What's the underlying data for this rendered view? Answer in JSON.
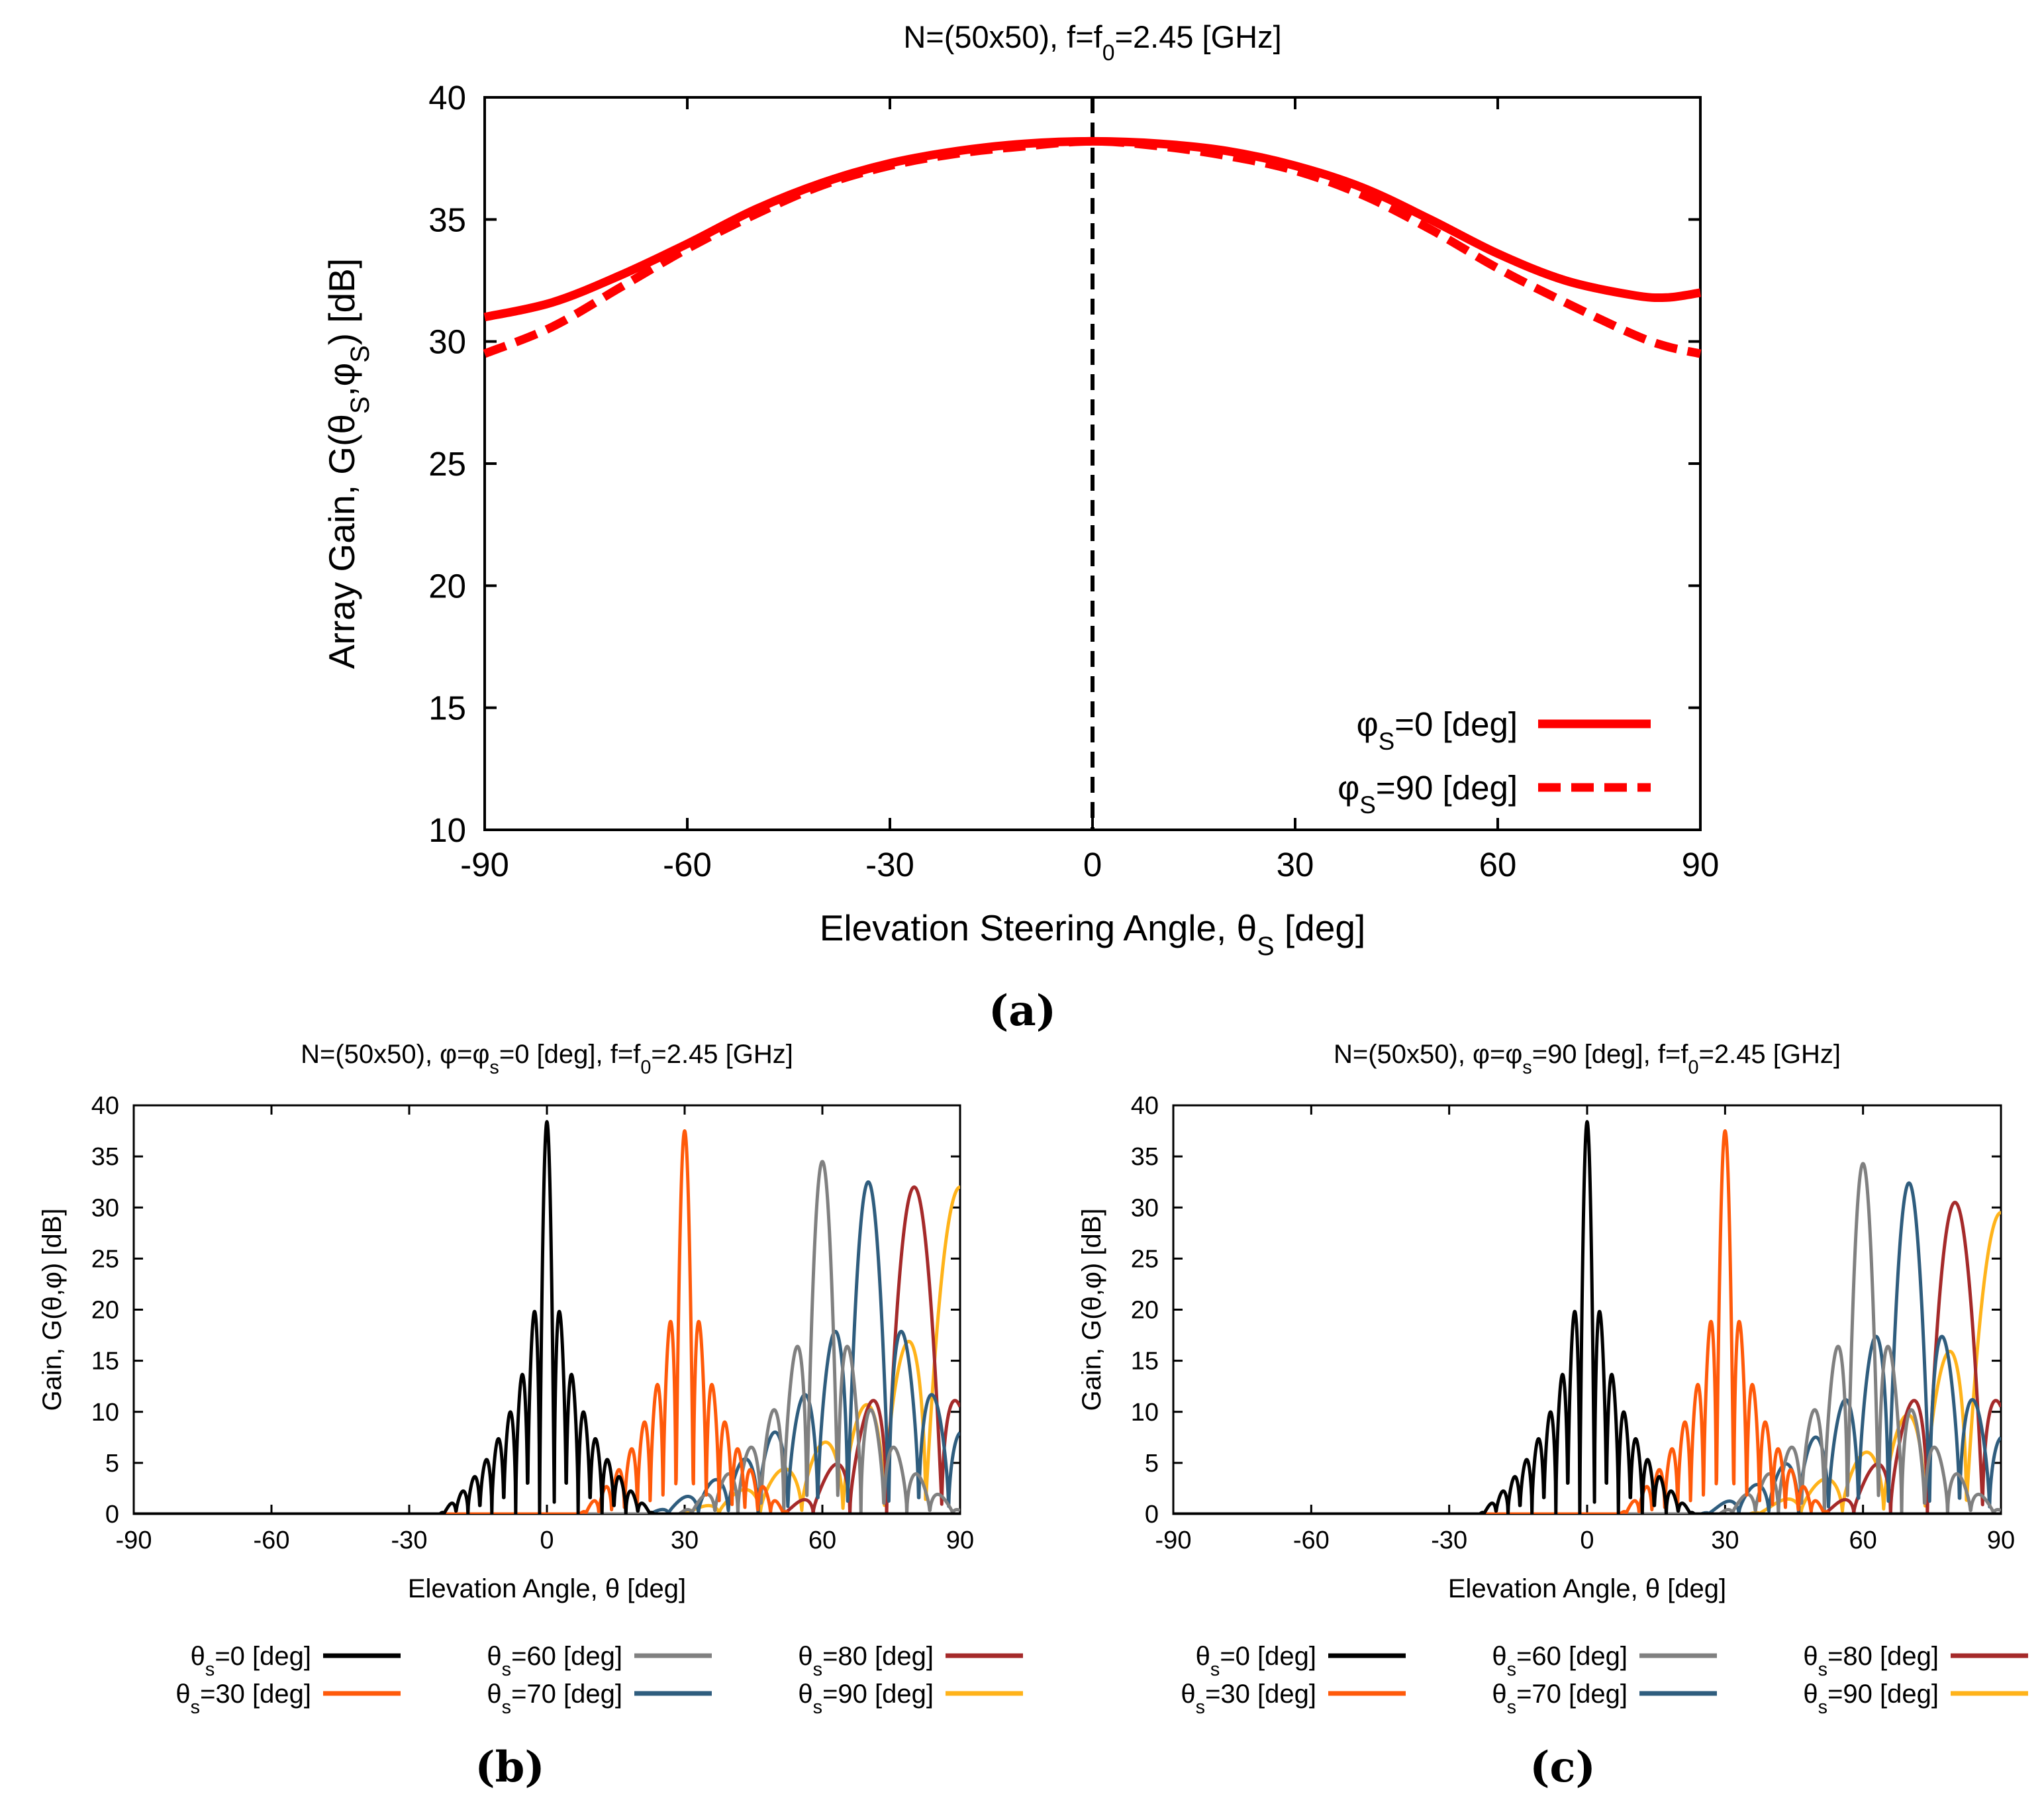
{
  "chart_data": [
    {
      "id": "a",
      "type": "line",
      "panel_label": "(a)",
      "title": {
        "pre": "N=(50x50),  f=f",
        "sub": "0",
        "post": "=2.45 [GHz]"
      },
      "xlabel": {
        "pre": "Elevation Steering Angle, θ",
        "sub": "S",
        "post": " [deg]"
      },
      "ylabel": {
        "pre": "Array Gain, G(θ",
        "sub1": "S",
        "mid": ",φ",
        "sub2": "S",
        "post": ") [dB]"
      },
      "xlim": [
        -90,
        90
      ],
      "ylim": [
        10,
        40
      ],
      "xticks": [
        -90,
        -60,
        -30,
        0,
        30,
        60,
        90
      ],
      "yticks": [
        10,
        15,
        20,
        25,
        30,
        35,
        40
      ],
      "grid": false,
      "legend_position": "bottom-right",
      "vline": {
        "x": 0,
        "style": "dashed",
        "color": "#000000"
      },
      "x": [
        -90,
        -80,
        -70,
        -60,
        -50,
        -40,
        -30,
        -20,
        -10,
        0,
        10,
        20,
        30,
        40,
        50,
        60,
        70,
        80,
        85,
        90
      ],
      "series": [
        {
          "name": "φs=0 [deg]",
          "label": {
            "pre": "φ",
            "sub": "S",
            "post": "=0 [deg]"
          },
          "color": "#ff0000",
          "style": "solid",
          "values": [
            31.0,
            31.6,
            32.7,
            34.0,
            35.4,
            36.5,
            37.3,
            37.8,
            38.1,
            38.2,
            38.1,
            37.8,
            37.2,
            36.3,
            35.0,
            33.6,
            32.5,
            31.9,
            31.8,
            32.0
          ]
        },
        {
          "name": "φs=90 [deg]",
          "label": {
            "pre": "φ",
            "sub": "S",
            "post": "=90 [deg]"
          },
          "color": "#ff0000",
          "style": "dashed",
          "values": [
            29.5,
            30.6,
            32.2,
            33.8,
            35.2,
            36.4,
            37.2,
            37.7,
            38.0,
            38.2,
            38.0,
            37.6,
            37.0,
            36.0,
            34.6,
            33.0,
            31.6,
            30.3,
            29.8,
            29.5
          ]
        }
      ]
    },
    {
      "id": "b",
      "type": "line",
      "panel_label": "(b)",
      "title": {
        "pre": "N=(50x50), φ=φ",
        "sub": "s",
        "mid": "=0 [deg],  f=f",
        "sub2": "0",
        "post": "=2.45 [GHz]"
      },
      "xlabel": "Elevation Angle, θ [deg]",
      "ylabel": "Gain, G(θ,φ) [dB]",
      "xlim": [
        -90,
        90
      ],
      "ylim": [
        0,
        40
      ],
      "xticks": [
        -90,
        -60,
        -30,
        0,
        30,
        60,
        90
      ],
      "yticks": [
        0,
        5,
        10,
        15,
        20,
        25,
        30,
        35,
        40
      ],
      "grid": false,
      "legend_position": "below",
      "series": [
        {
          "name": "θs=0 [deg]",
          "label": {
            "pre": "θ",
            "sub": "s",
            "post": "=0 [deg]"
          },
          "color": "#000000",
          "steer": 0,
          "peak": 38.4,
          "width": 1.6,
          "sidelobe": 25.0,
          "lobe_spacing": 2.6
        },
        {
          "name": "θs=30 [deg]",
          "label": {
            "pre": "θ",
            "sub": "s",
            "post": "=30 [deg]"
          },
          "color": "#ff5a0a",
          "steer": 30,
          "peak": 37.5,
          "width": 1.9,
          "sidelobe": 24.0,
          "lobe_spacing": 2.8
        },
        {
          "name": "θs=60 [deg]",
          "label": {
            "pre": "θ",
            "sub": "s",
            "post": "=60 [deg]"
          },
          "color": "#808080",
          "steer": 60,
          "peak": 34.5,
          "width": 3.4,
          "sidelobe": 21.5,
          "lobe_spacing": 5.0
        },
        {
          "name": "θs=70 [deg]",
          "label": {
            "pre": "θ",
            "sub": "s",
            "post": "=70 [deg]"
          },
          "color": "#2f5d7e",
          "steer": 70,
          "peak": 32.5,
          "width": 4.5,
          "sidelobe": 23.0,
          "lobe_spacing": 6.5
        },
        {
          "name": "θs=80 [deg]",
          "label": {
            "pre": "θ",
            "sub": "s",
            "post": "=80 [deg]"
          },
          "color": "#a52a2a",
          "steer": 80,
          "peak": 32.0,
          "width": 6.0,
          "sidelobe": 16.0,
          "lobe_spacing": 8.0
        },
        {
          "name": "θs=90 [deg]",
          "label": {
            "pre": "θ",
            "sub": "s",
            "post": "=90 [deg]"
          },
          "color": "#ffb31a",
          "steer": 90,
          "peak": 32.0,
          "width": 7.5,
          "sidelobe": 22.0,
          "lobe_spacing": 9.0
        }
      ]
    },
    {
      "id": "c",
      "type": "line",
      "panel_label": "(c)",
      "title": {
        "pre": "N=(50x50), φ=φ",
        "sub": "s",
        "mid": "=90 [deg],  f=f",
        "sub2": "0",
        "post": "=2.45 [GHz]"
      },
      "xlabel": "Elevation Angle, θ [deg]",
      "ylabel": "Gain, G(θ,φ) [dB]",
      "xlim": [
        -90,
        90
      ],
      "ylim": [
        0,
        40
      ],
      "xticks": [
        -90,
        -60,
        -30,
        0,
        30,
        60,
        90
      ],
      "yticks": [
        0,
        5,
        10,
        15,
        20,
        25,
        30,
        35,
        40
      ],
      "grid": false,
      "legend_position": "below",
      "series": [
        {
          "name": "θs=0 [deg]",
          "label": {
            "pre": "θ",
            "sub": "s",
            "post": "=0 [deg]"
          },
          "color": "#000000",
          "steer": 0,
          "peak": 38.4,
          "width": 1.6,
          "sidelobe": 25.0,
          "lobe_spacing": 2.6
        },
        {
          "name": "θs=30 [deg]",
          "label": {
            "pre": "θ",
            "sub": "s",
            "post": "=30 [deg]"
          },
          "color": "#ff5a0a",
          "steer": 30,
          "peak": 37.5,
          "width": 1.9,
          "sidelobe": 24.0,
          "lobe_spacing": 2.8
        },
        {
          "name": "θs=60 [deg]",
          "label": {
            "pre": "θ",
            "sub": "s",
            "post": "=60 [deg]"
          },
          "color": "#808080",
          "steer": 60,
          "peak": 34.3,
          "width": 3.4,
          "sidelobe": 21.5,
          "lobe_spacing": 5.0
        },
        {
          "name": "θs=70 [deg]",
          "label": {
            "pre": "θ",
            "sub": "s",
            "post": "=70 [deg]"
          },
          "color": "#2f5d7e",
          "steer": 70,
          "peak": 32.4,
          "width": 4.5,
          "sidelobe": 22.5,
          "lobe_spacing": 6.5
        },
        {
          "name": "θs=80 [deg]",
          "label": {
            "pre": "θ",
            "sub": "s",
            "post": "=80 [deg]"
          },
          "color": "#a52a2a",
          "steer": 80,
          "peak": 30.5,
          "width": 6.0,
          "sidelobe": 16.0,
          "lobe_spacing": 8.0
        },
        {
          "name": "θs=90 [deg]",
          "label": {
            "pre": "θ",
            "sub": "s",
            "post": "=90 [deg]"
          },
          "color": "#ffb31a",
          "steer": 90,
          "peak": 29.5,
          "width": 7.5,
          "sidelobe": 21.0,
          "lobe_spacing": 9.0
        }
      ]
    }
  ]
}
